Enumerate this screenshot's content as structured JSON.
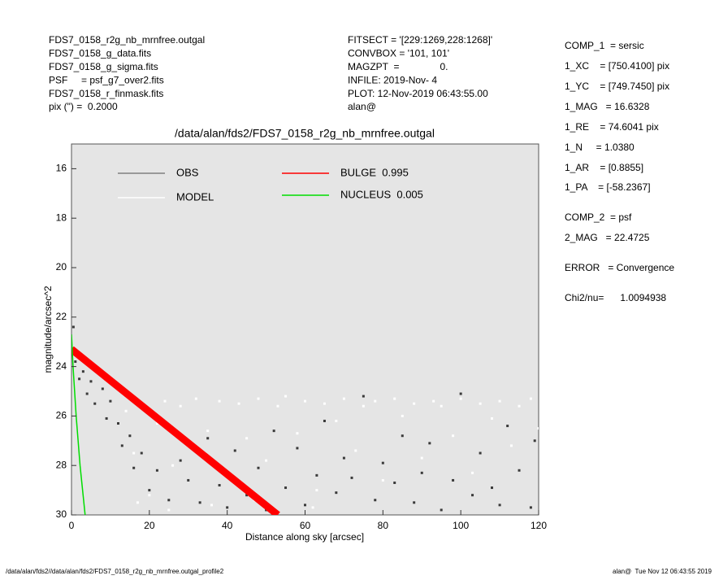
{
  "header": {
    "left": [
      "FDS7_0158_r2g_nb_mrnfree.outgal",
      "FDS7_0158_g_data.fits",
      "FDS7_0158_g_sigma.fits",
      "PSF     = psf_g7_over2.fits",
      "FDS7_0158_r_finmask.fits",
      "pix (\") =  0.2000"
    ],
    "middle": [
      "FITSECT = '[229:1269,228:1268]'",
      "CONVBOX = '101, 101'",
      "MAGZPT  =               0.",
      "INFILE: 2019-Nov- 4",
      "PLOT: 12-Nov-2019 06:43:55.00",
      "alan@"
    ],
    "right": [
      "COMP_1  = sersic",
      "1_XC    = [750.4100] pix",
      "1_YC    = [749.7450] pix",
      "1_MAG   = 16.6328",
      "1_RE    = 74.6041 pix",
      "1_N     = 1.0380",
      "1_AR    = [0.8855]",
      "1_PA    = [-58.2367]",
      "COMP_2  = psf",
      "2_MAG   = 22.4725",
      "ERROR   = Convergence",
      "Chi2/nu=      1.0094938"
    ]
  },
  "footer": {
    "left": "/data/alan/fds2//data/alan/fds2/FDS7_0158_r2g_nb_mrnfree.outgal_profile2",
    "right": "alan@  Tue Nov 12 06:43:55 2019"
  },
  "chart_data": {
    "type": "scatter",
    "title": "/data/alan/fds2/FDS7_0158_r2g_nb_mrnfree.outgal",
    "xlabel": "Distance along sky [arcsec]",
    "ylabel": "magnitude/arcsec^2",
    "xlim": [
      0,
      120
    ],
    "xticks": [
      0,
      20,
      40,
      60,
      80,
      100,
      120
    ],
    "ylim": [
      30,
      15
    ],
    "yticks": [
      16,
      18,
      20,
      22,
      24,
      26,
      28,
      30
    ],
    "series": [
      {
        "name": "MODEL",
        "color": "#ffffff",
        "kind": "scatter",
        "x": [
          14,
          16,
          18,
          20,
          22,
          24,
          26,
          28,
          30,
          32,
          35,
          38,
          40,
          43,
          45,
          48,
          50,
          53,
          55,
          58,
          60,
          63,
          65,
          68,
          70,
          73,
          75,
          78,
          80,
          83,
          85,
          88,
          90,
          93,
          95,
          98,
          100,
          103,
          105,
          108,
          110,
          113,
          115,
          118,
          120,
          17,
          25,
          36,
          47,
          62
        ],
        "values": [
          25.8,
          27.5,
          25.5,
          29.2,
          26.3,
          25.4,
          28.0,
          25.6,
          27.1,
          25.3,
          26.6,
          25.4,
          28.4,
          25.5,
          26.9,
          25.3,
          27.8,
          25.6,
          25.2,
          26.7,
          25.4,
          29.0,
          25.5,
          26.2,
          25.3,
          27.4,
          25.6,
          25.4,
          28.6,
          25.3,
          26.0,
          25.5,
          27.7,
          25.4,
          25.6,
          26.8,
          25.3,
          28.3,
          25.5,
          26.1,
          25.4,
          27.2,
          25.6,
          25.3,
          26.5,
          29.5,
          29.8,
          29.6,
          29.4,
          29.7
        ]
      },
      {
        "name": "OBS",
        "color": "#808080",
        "kind": "scatter",
        "x": [
          0.5,
          1,
          2,
          3,
          4,
          5,
          6,
          8,
          9,
          10,
          12,
          13,
          15,
          16,
          18,
          20,
          22,
          25,
          28,
          30,
          33,
          35,
          38,
          40,
          42,
          45,
          48,
          50,
          52,
          55,
          58,
          60,
          63,
          65,
          68,
          70,
          72,
          75,
          78,
          80,
          83,
          85,
          88,
          90,
          92,
          95,
          98,
          100,
          103,
          105,
          108,
          110,
          112,
          115,
          118,
          119
        ],
        "values": [
          22.4,
          23.8,
          24.5,
          24.2,
          25.1,
          24.6,
          25.5,
          24.9,
          26.1,
          25.4,
          26.3,
          27.2,
          26.8,
          28.1,
          27.5,
          29.0,
          28.2,
          29.4,
          27.8,
          28.6,
          29.5,
          26.9,
          28.8,
          29.7,
          27.4,
          29.2,
          28.1,
          29.8,
          26.6,
          28.9,
          27.3,
          29.6,
          28.4,
          26.2,
          29.1,
          27.7,
          28.5,
          25.2,
          29.4,
          27.9,
          28.7,
          26.8,
          29.5,
          28.3,
          27.1,
          29.8,
          28.6,
          25.1,
          29.2,
          27.5,
          28.9,
          29.6,
          26.4,
          28.2,
          29.7,
          27.0
        ]
      },
      {
        "name": "BULGE  0.995",
        "color": "#ff0000",
        "kind": "band",
        "x": [
          0,
          53
        ],
        "values": [
          23.3,
          30
        ]
      },
      {
        "name": "NUCLEUS  0.005",
        "color": "#00dd00",
        "kind": "line",
        "x": [
          0,
          0.4,
          1.2,
          2.2,
          3.5
        ],
        "values": [
          22.7,
          24,
          26,
          28,
          30
        ]
      }
    ]
  }
}
